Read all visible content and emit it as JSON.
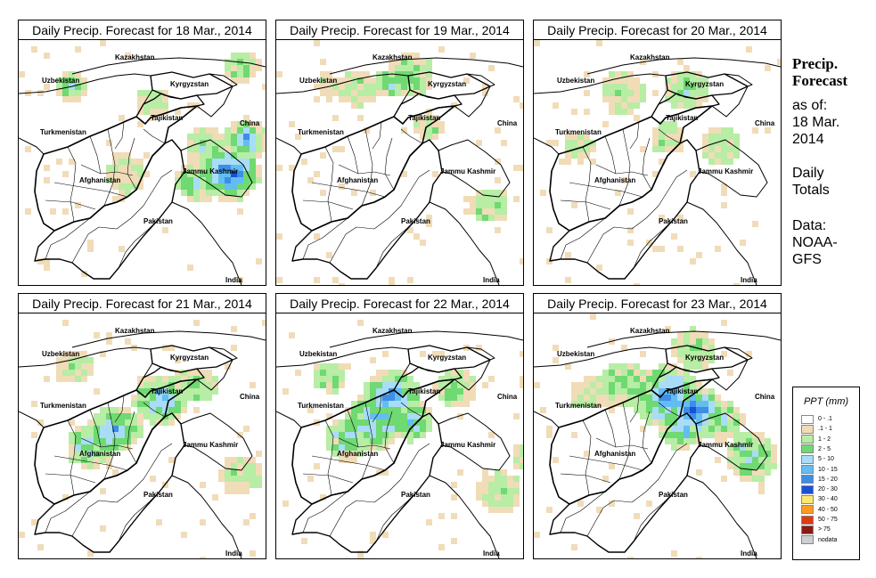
{
  "panels": [
    {
      "title": "Daily Precip. Forecast for  18 Mar., 2014"
    },
    {
      "title": "Daily Precip. Forecast for  19 Mar., 2014"
    },
    {
      "title": "Daily Precip. Forecast for  20 Mar., 2014"
    },
    {
      "title": "Daily Precip. Forecast for  21 Mar., 2014"
    },
    {
      "title": "Daily Precip. Forecast for  22 Mar., 2014"
    },
    {
      "title": "Daily Precip. Forecast for  23 Mar., 2014"
    }
  ],
  "map_labels": {
    "kazakhstan": "Kazakhstan",
    "uzbekistan": "Uzbekistan",
    "kyrgyzstan": "Kyrgyzstan",
    "tajikistan": "Tajikistan",
    "turkmenistan": "Turkmenistan",
    "china": "China",
    "afghanistan": "Afghanistan",
    "jammu_kashmir": "Jammu Kashmir",
    "pakistan": "Pakistan",
    "india": "India"
  },
  "sidebar": {
    "title_line1": "Precip.",
    "title_line2": "Forecast",
    "asof_line1": "as of:",
    "asof_line2": "18 Mar.",
    "asof_line3": "2014",
    "daily_line1": "Daily",
    "daily_line2": "Totals",
    "data_line1": "Data:",
    "data_line2": "NOAA-",
    "data_line3": "GFS"
  },
  "legend": {
    "title": "PPT (mm)",
    "classes": [
      {
        "label": "0 - .1",
        "color": "#ffffff"
      },
      {
        "label": ".1 - 1",
        "color": "#f1dcb8"
      },
      {
        "label": "1 - 2",
        "color": "#b7eda4"
      },
      {
        "label": "2 - 5",
        "color": "#6fd972"
      },
      {
        "label": "5 - 10",
        "color": "#a9dcf6"
      },
      {
        "label": "10 - 15",
        "color": "#63bdf2"
      },
      {
        "label": "15 - 20",
        "color": "#3e8de6"
      },
      {
        "label": "20 - 30",
        "color": "#1a50d6"
      },
      {
        "label": "30 - 40",
        "color": "#ffe870"
      },
      {
        "label": "40 - 50",
        "color": "#ff9b1e"
      },
      {
        "label": "50 - 75",
        "color": "#e03a10"
      },
      {
        "label": "> 75",
        "color": "#8c1a10"
      },
      {
        "label": "nodata",
        "color": "#cfcfcf"
      }
    ]
  }
}
